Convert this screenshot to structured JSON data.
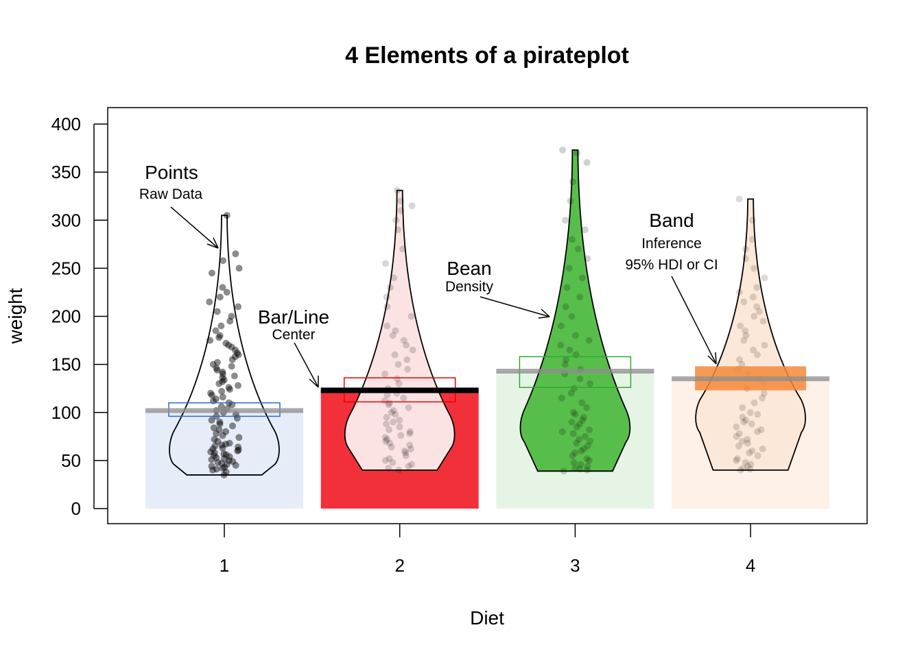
{
  "chart_data": {
    "type": "pirateplot",
    "title": "4 Elements of a pirateplot",
    "xlabel": "Diet",
    "ylabel": "weight",
    "categories": [
      "1",
      "2",
      "3",
      "4"
    ],
    "ylim": [
      0,
      400
    ],
    "yticks": [
      0,
      50,
      100,
      150,
      200,
      250,
      300,
      350,
      400
    ],
    "grid": false,
    "groups": [
      {
        "category": "1",
        "color": "#3366CC",
        "bar_color": "#E6ECF8",
        "bean_fill": "none",
        "point_opacity": 0.45,
        "mean": 102,
        "hdi": [
          96,
          110
        ],
        "min": 35,
        "max": 305,
        "mode": 62,
        "points": [
          35,
          38,
          40,
          41,
          42,
          43,
          44,
          45,
          46,
          47,
          48,
          49,
          50,
          51,
          52,
          53,
          54,
          55,
          56,
          57,
          58,
          59,
          60,
          61,
          62,
          63,
          64,
          65,
          66,
          67,
          68,
          70,
          72,
          74,
          76,
          78,
          80,
          82,
          84,
          86,
          88,
          90,
          92,
          94,
          96,
          98,
          100,
          102,
          104,
          106,
          108,
          110,
          112,
          114,
          116,
          118,
          120,
          122,
          124,
          126,
          128,
          130,
          132,
          134,
          136,
          138,
          140,
          142,
          144,
          146,
          148,
          150,
          152,
          155,
          158,
          160,
          162,
          165,
          168,
          170,
          172,
          175,
          178,
          180,
          185,
          190,
          195,
          200,
          205,
          210,
          215,
          220,
          225,
          230,
          245,
          250,
          258,
          265,
          305
        ]
      },
      {
        "category": "2",
        "color": "#EE0000",
        "bar_color": "#F2303A",
        "bean_fill": "#FBE3E4",
        "point_opacity": 0.16,
        "mean": 123,
        "hdi": [
          111,
          136
        ],
        "min": 40,
        "max": 331,
        "mode": 78,
        "points": [
          40,
          42,
          44,
          46,
          48,
          50,
          52,
          55,
          58,
          60,
          62,
          64,
          66,
          68,
          70,
          72,
          74,
          76,
          78,
          80,
          82,
          85,
          88,
          90,
          92,
          95,
          98,
          100,
          102,
          105,
          108,
          110,
          112,
          115,
          118,
          120,
          125,
          130,
          135,
          140,
          145,
          150,
          155,
          160,
          165,
          170,
          175,
          180,
          185,
          190,
          200,
          210,
          220,
          230,
          240,
          255,
          270,
          290,
          300,
          310,
          315,
          320,
          331
        ]
      },
      {
        "category": "3",
        "color": "#2BAA2B",
        "bar_color": "#E6F4E6",
        "bean_fill": "#58BE4B",
        "point_opacity": 0.18,
        "mean": 143,
        "hdi": [
          126,
          158
        ],
        "min": 39,
        "max": 373,
        "mode": 85,
        "points": [
          39,
          40,
          41,
          42,
          44,
          46,
          48,
          50,
          52,
          55,
          58,
          60,
          62,
          65,
          68,
          70,
          72,
          75,
          78,
          80,
          82,
          85,
          88,
          90,
          92,
          95,
          98,
          100,
          105,
          110,
          115,
          120,
          125,
          130,
          135,
          140,
          145,
          150,
          155,
          160,
          165,
          170,
          175,
          180,
          190,
          200,
          210,
          220,
          230,
          240,
          250,
          260,
          270,
          280,
          290,
          300,
          320,
          340,
          360,
          370,
          373
        ]
      },
      {
        "category": "4",
        "color": "#F4883A",
        "bar_color": "#FDF1E8",
        "bean_fill": "#FCE8D8",
        "point_opacity": 0.14,
        "mean": 135,
        "hdi": [
          123,
          148
        ],
        "min": 40,
        "max": 322,
        "mode": 95,
        "points": [
          40,
          41,
          42,
          44,
          46,
          48,
          50,
          52,
          55,
          58,
          60,
          62,
          65,
          68,
          70,
          72,
          75,
          78,
          80,
          82,
          85,
          88,
          90,
          92,
          95,
          98,
          100,
          105,
          110,
          115,
          120,
          125,
          130,
          135,
          140,
          145,
          150,
          155,
          160,
          165,
          170,
          175,
          180,
          185,
          190,
          195,
          200,
          205,
          210,
          215,
          220,
          225,
          230,
          240,
          250,
          260,
          270,
          280,
          300,
          322
        ]
      }
    ],
    "annotations": [
      {
        "main": "Points",
        "sub": "Raw Data"
      },
      {
        "main": "Bar/Line",
        "sub": "Center"
      },
      {
        "main": "Bean",
        "sub": "Density"
      },
      {
        "main": "Band",
        "sub": "Inference",
        "sub2": "95% HDI or CI"
      }
    ]
  }
}
